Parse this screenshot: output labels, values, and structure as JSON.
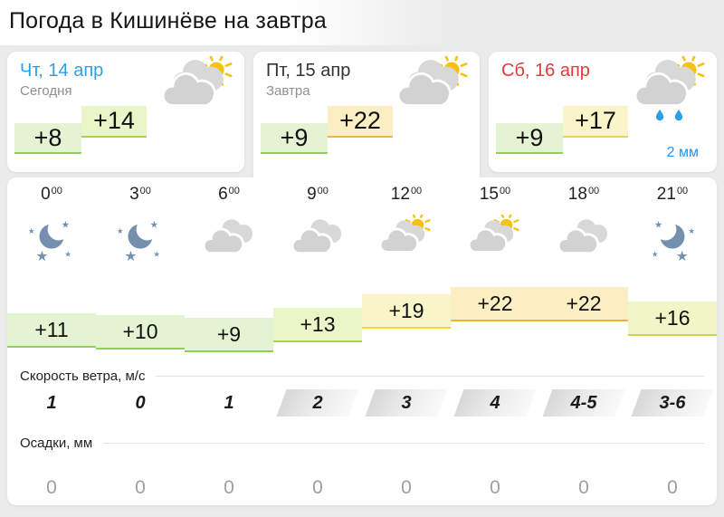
{
  "page": {
    "title": "Погода в Кишинёве на завтра"
  },
  "colors": {
    "page_bg": "#ebebeb",
    "card_bg": "#ffffff",
    "day_blue": "#2e9fe6",
    "day_dark": "#333333",
    "day_red": "#e13b3b",
    "subtitle_gray": "#909090",
    "precip_value_gray": "#9e9e9e",
    "link_blue": "#2196f3",
    "moon": "#7590af",
    "cloud_front": "#d2d2d2",
    "cloud_back": "#d8d8d8",
    "sun": "#f6c211",
    "rain_drop": "#29a1e6",
    "bands": {
      "green": {
        "bg": "#e4f4d2",
        "border": "#93cf56"
      },
      "lime": {
        "bg": "#eaf5c8",
        "border": "#a9d545"
      },
      "yellow-green": {
        "bg": "#f0f6c6",
        "border": "#c9d94b"
      },
      "yellow": {
        "bg": "#f9f5c9",
        "border": "#e9d54e"
      },
      "amber": {
        "bg": "#fbeec3",
        "border": "#eeb43c"
      }
    }
  },
  "days": [
    {
      "date": "Чт, 14 апр",
      "subtitle": "Сегодня",
      "temp_min": "+8",
      "temp_max": "+14",
      "min_band": "green",
      "max_band": "lime",
      "icon": "sun-clouds-day",
      "date_color": "#2e9fe6",
      "selected": false
    },
    {
      "date": "Пт, 15 апр",
      "subtitle": "Завтра",
      "temp_min": "+9",
      "temp_max": "+22",
      "min_band": "green",
      "max_band": "amber",
      "icon": "sun-clouds-day",
      "date_color": "#333333",
      "selected": true
    },
    {
      "date": "Сб, 16 апр",
      "subtitle": "",
      "temp_min": "+9",
      "temp_max": "+17",
      "min_band": "green",
      "max_band": "yellow",
      "icon": "sun-clouds-rain-day",
      "date_color": "#e13b3b",
      "selected": false,
      "precip_note": "2 мм"
    }
  ],
  "hourly": {
    "wind_label": "Скорость ветра, м/с",
    "precip_label": "Осадки, мм",
    "hours": [
      {
        "time": "0",
        "sup": "00",
        "icon": "moon-stars",
        "temp": "+11",
        "temp_value": 11,
        "band": "green",
        "wind": "1",
        "wind_chip": false,
        "precip": "0"
      },
      {
        "time": "3",
        "sup": "00",
        "icon": "moon-stars",
        "temp": "+10",
        "temp_value": 10,
        "band": "green",
        "wind": "0",
        "wind_chip": false,
        "precip": "0"
      },
      {
        "time": "6",
        "sup": "00",
        "icon": "clouds",
        "temp": "+9",
        "temp_value": 9,
        "band": "green",
        "wind": "1",
        "wind_chip": false,
        "precip": "0"
      },
      {
        "time": "9",
        "sup": "00",
        "icon": "clouds",
        "temp": "+13",
        "temp_value": 13,
        "band": "lime",
        "wind": "2",
        "wind_chip": true,
        "precip": "0"
      },
      {
        "time": "12",
        "sup": "00",
        "icon": "sun-clouds",
        "temp": "+19",
        "temp_value": 19,
        "band": "yellow",
        "wind": "3",
        "wind_chip": true,
        "precip": "0"
      },
      {
        "time": "15",
        "sup": "00",
        "icon": "sun-clouds",
        "temp": "+22",
        "temp_value": 22,
        "band": "amber",
        "wind": "4",
        "wind_chip": true,
        "precip": "0"
      },
      {
        "time": "18",
        "sup": "00",
        "icon": "clouds",
        "temp": "+22",
        "temp_value": 22,
        "band": "amber",
        "wind": "4-5",
        "wind_chip": true,
        "precip": "0"
      },
      {
        "time": "21",
        "sup": "00",
        "icon": "moon-stars-flip",
        "temp": "+16",
        "temp_value": 16,
        "band": "yellow-green",
        "wind": "3-6",
        "wind_chip": true,
        "precip": "0"
      }
    ]
  }
}
